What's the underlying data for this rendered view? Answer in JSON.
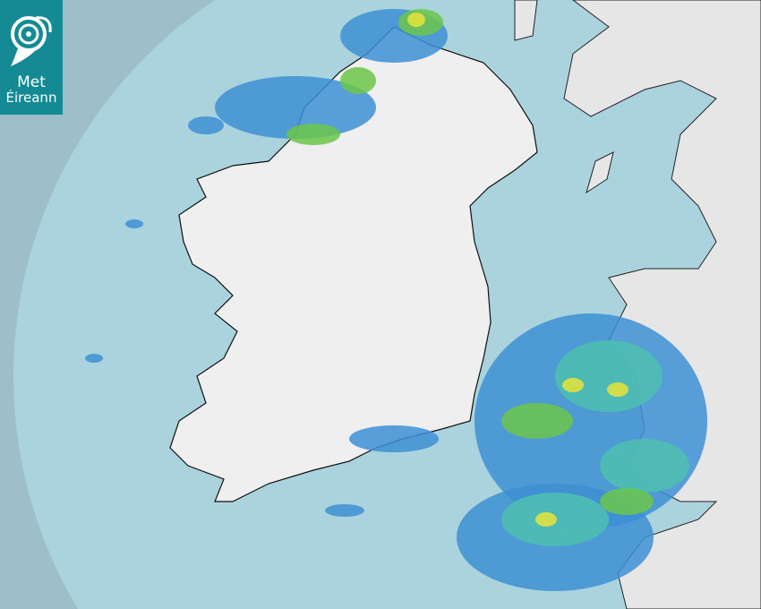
{
  "logo": {
    "line1": "Met",
    "line2": "Éireann"
  },
  "map": {
    "type": "rainfall-radar",
    "colors": {
      "outside_range": "#9ebfca",
      "sea": "#aad3de",
      "land": "#eeeeee",
      "rain_light": "#3d8fd4",
      "rain_moderate": "#4fc0b0",
      "rain_heavy": "#6cc64a",
      "rain_very_heavy": "#e8e43a",
      "brand": "#138a94"
    }
  }
}
